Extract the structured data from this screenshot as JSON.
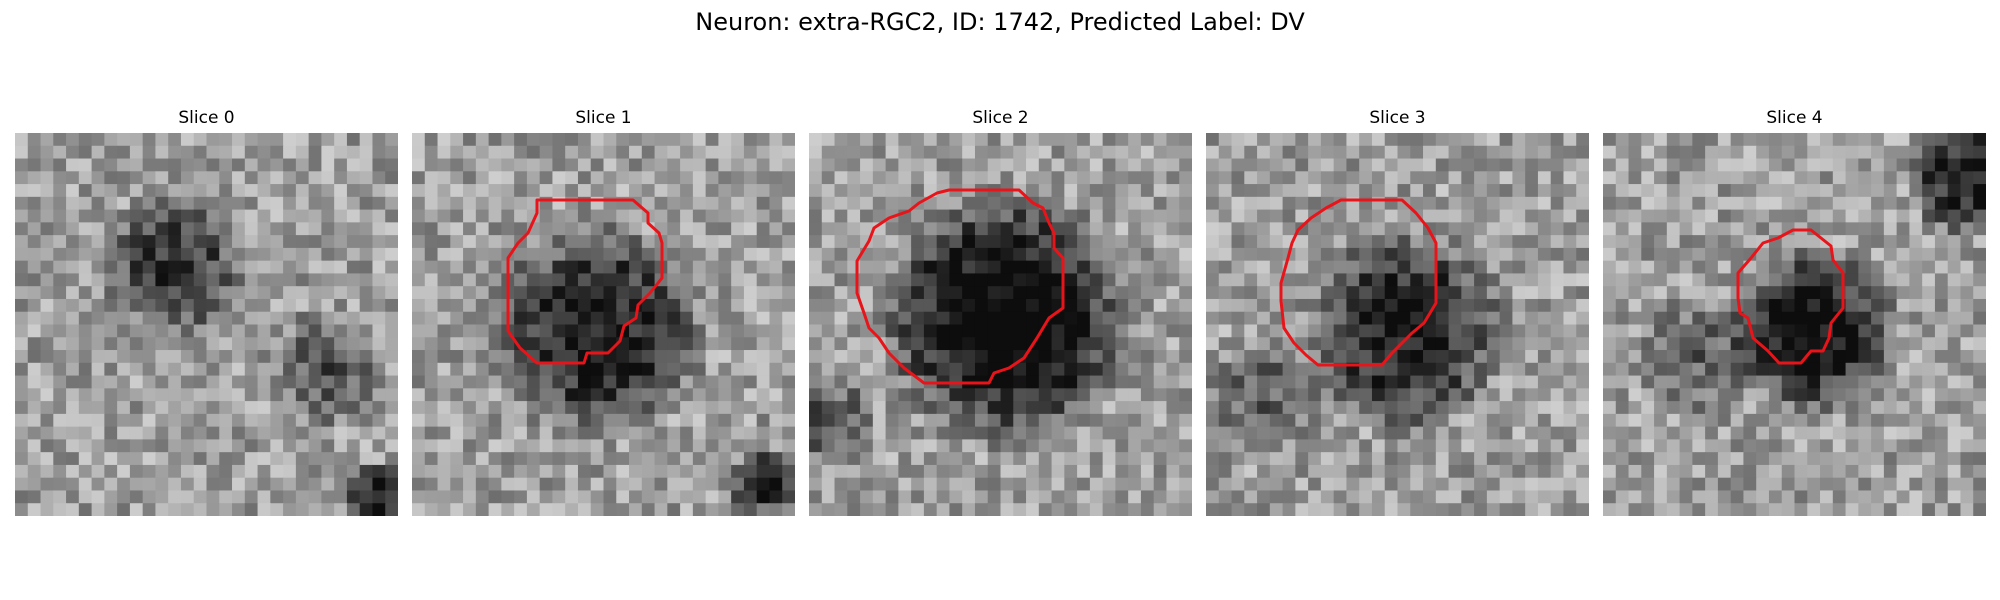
{
  "figure": {
    "title": "Neuron: extra-RGC2, ID: 1742, Predicted Label: DV"
  },
  "slices": [
    {
      "title": "Slice 0",
      "has_contour": false,
      "tone": "diffuse"
    },
    {
      "title": "Slice 1",
      "has_contour": true,
      "tone": "dark-blob"
    },
    {
      "title": "Slice 2",
      "has_contour": true,
      "tone": "dark-blob"
    },
    {
      "title": "Slice 3",
      "has_contour": true,
      "tone": "dark-blob"
    },
    {
      "title": "Slice 4",
      "has_contour": true,
      "tone": "dark-blob"
    }
  ],
  "colors": {
    "contour": "#e8141a",
    "background": "#ffffff"
  }
}
